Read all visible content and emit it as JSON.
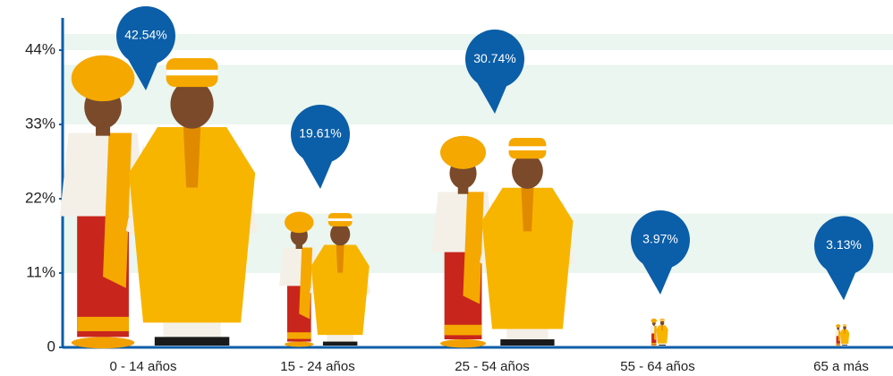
{
  "chart_data": {
    "type": "bar",
    "categories": [
      "0 - 14 años",
      "15 - 24 años",
      "25 - 54 años",
      "55 - 64 años",
      "65 a más"
    ],
    "values": [
      42.54,
      19.61,
      30.74,
      3.97,
      3.13
    ],
    "value_labels": [
      "42.54%",
      "19.61%",
      "30.74%",
      "3.97%",
      "3.13%"
    ],
    "ylim": [
      0,
      44
    ],
    "yticks": [
      0,
      {
        "value": 11,
        "label": "11%"
      },
      {
        "value": 22,
        "label": "22%"
      },
      {
        "value": 33,
        "label": "33%"
      },
      {
        "value": 44,
        "label": "44%"
      }
    ],
    "color": "#0b5ea8",
    "grid": true
  }
}
